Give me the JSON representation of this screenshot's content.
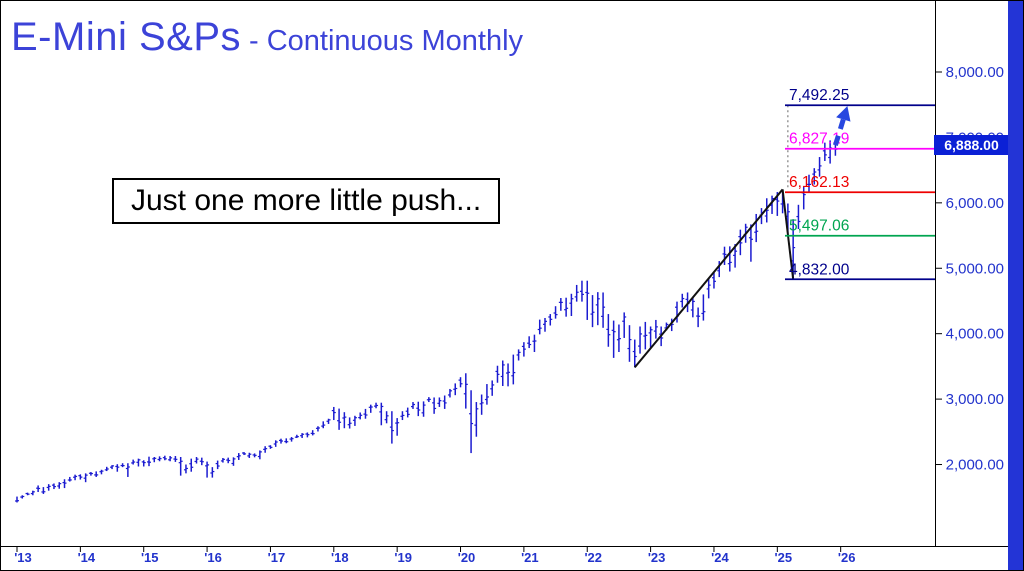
{
  "title": {
    "main": "E-Mini S&Ps",
    "subtitle": "- Continuous Monthly"
  },
  "annotation": {
    "text": "Just one more little push..."
  },
  "current_price": {
    "label": "6,888.00",
    "value": 6888
  },
  "price_scale": {
    "ticks": [
      {
        "label": "8,000.00",
        "value": 8000
      },
      {
        "label": "7,000.00",
        "value": 7000
      },
      {
        "label": "6,000.00",
        "value": 6000
      },
      {
        "label": "5,000.00",
        "value": 5000
      },
      {
        "label": "4,000.00",
        "value": 4000
      },
      {
        "label": "3,000.00",
        "value": 3000
      },
      {
        "label": "2,000.00",
        "value": 2000
      }
    ]
  },
  "x_axis": {
    "year_labels": [
      "'13",
      "'14",
      "'15",
      "'16",
      "'17",
      "'18",
      "'19",
      "'20",
      "'21",
      "'22",
      "'23",
      "'24",
      "'25",
      "'26"
    ]
  },
  "levels": [
    {
      "label": "7,492.25",
      "value": 7492.25,
      "color": "#00008b"
    },
    {
      "label": "6,827.19",
      "value": 6827.19,
      "color": "#ff00ff"
    },
    {
      "label": "6,162.13",
      "value": 6162.13,
      "color": "#ee0000"
    },
    {
      "label": "5,497.06",
      "value": 5497.06,
      "color": "#00a550"
    },
    {
      "label": "4,832.00",
      "value": 4832.0,
      "color": "#00008b"
    }
  ],
  "trend_lines": [
    {
      "points": [
        [
          "2022-10",
          3485
        ],
        [
          "2025-02",
          6205
        ]
      ]
    },
    {
      "points": [
        [
          "2025-02",
          6205
        ],
        [
          "2025-04",
          4832
        ]
      ]
    }
  ],
  "dotted_line": {
    "month": "2025-03",
    "from": 7492.25,
    "to": 6205
  },
  "arrow": {
    "month": "2025-12",
    "from_value": 6880,
    "to_value": 7480
  },
  "colors": {
    "bars": "#1b1bd0",
    "axis_text": "#2233cc",
    "title": "#3c43d8",
    "trend": "#111111",
    "arrow": "#2747e0",
    "dotted": "#666666",
    "price_tag_bg": "#0b20d6",
    "strip": "#2334d6"
  },
  "chart_data": {
    "type": "bar",
    "subtype": "ohlc-monthly-bars",
    "title": "E-Mini S&Ps - Continuous Monthly",
    "xlabel": "",
    "ylabel": "",
    "ylim": [
      800,
      9080
    ],
    "x_start": "2013-01",
    "current_close": 6888,
    "years": [
      {
        "year": 2013,
        "hl": [
          [
            1510,
            1420
          ],
          [
            1530,
            1480
          ],
          [
            1570,
            1530
          ],
          [
            1600,
            1530
          ],
          [
            1680,
            1580
          ],
          [
            1655,
            1550
          ],
          [
            1700,
            1600
          ],
          [
            1710,
            1625
          ],
          [
            1730,
            1630
          ],
          [
            1775,
            1640
          ],
          [
            1810,
            1740
          ],
          [
            1845,
            1760
          ]
        ]
      },
      {
        "year": 2014,
        "hl": [
          [
            1850,
            1770
          ],
          [
            1865,
            1730
          ],
          [
            1885,
            1830
          ],
          [
            1895,
            1810
          ],
          [
            1920,
            1850
          ],
          [
            1965,
            1900
          ],
          [
            1990,
            1930
          ],
          [
            2005,
            1890
          ],
          [
            2020,
            1960
          ],
          [
            2020,
            1810
          ],
          [
            2075,
            2000
          ],
          [
            2090,
            1970
          ]
        ]
      },
      {
        "year": 2015,
        "hl": [
          [
            2065,
            1970
          ],
          [
            2120,
            1975
          ],
          [
            2115,
            2035
          ],
          [
            2125,
            2050
          ],
          [
            2135,
            2065
          ],
          [
            2130,
            2050
          ],
          [
            2130,
            2040
          ],
          [
            2115,
            1830
          ],
          [
            2000,
            1865
          ],
          [
            2090,
            1890
          ],
          [
            2115,
            2015
          ],
          [
            2105,
            1990
          ]
        ]
      },
      {
        "year": 2016,
        "hl": [
          [
            2045,
            1800
          ],
          [
            1960,
            1800
          ],
          [
            2060,
            1930
          ],
          [
            2100,
            2030
          ],
          [
            2105,
            2020
          ],
          [
            2110,
            1980
          ],
          [
            2175,
            2070
          ],
          [
            2190,
            2145
          ],
          [
            2180,
            2100
          ],
          [
            2170,
            2110
          ],
          [
            2215,
            2080
          ],
          [
            2280,
            2180
          ]
        ]
      },
      {
        "year": 2017,
        "hl": [
          [
            2295,
            2240
          ],
          [
            2370,
            2270
          ],
          [
            2395,
            2320
          ],
          [
            2400,
            2325
          ],
          [
            2420,
            2350
          ],
          [
            2455,
            2405
          ],
          [
            2480,
            2405
          ],
          [
            2490,
            2415
          ],
          [
            2525,
            2445
          ],
          [
            2585,
            2505
          ],
          [
            2660,
            2555
          ],
          [
            2700,
            2620
          ]
        ]
      },
      {
        "year": 2018,
        "hl": [
          [
            2880,
            2680
          ],
          [
            2855,
            2530
          ],
          [
            2800,
            2555
          ],
          [
            2720,
            2550
          ],
          [
            2745,
            2590
          ],
          [
            2795,
            2690
          ],
          [
            2850,
            2700
          ],
          [
            2915,
            2790
          ],
          [
            2945,
            2860
          ],
          [
            2945,
            2600
          ],
          [
            2815,
            2630
          ],
          [
            2815,
            2320
          ]
        ]
      },
      {
        "year": 2019,
        "hl": [
          [
            2710,
            2440
          ],
          [
            2815,
            2680
          ],
          [
            2870,
            2720
          ],
          [
            2955,
            2850
          ],
          [
            2960,
            2740
          ],
          [
            2965,
            2730
          ],
          [
            3030,
            2955
          ],
          [
            3025,
            2775
          ],
          [
            3025,
            2880
          ],
          [
            3055,
            2850
          ],
          [
            3155,
            3025
          ],
          [
            3240,
            3060
          ]
        ]
      },
      {
        "year": 2020,
        "hl": [
          [
            3335,
            3180
          ],
          [
            3395,
            2855
          ],
          [
            3135,
            2175
          ],
          [
            2955,
            2425
          ],
          [
            3070,
            2760
          ],
          [
            3230,
            2915
          ],
          [
            3285,
            3050
          ],
          [
            3510,
            3250
          ],
          [
            3590,
            3200
          ],
          [
            3545,
            3195
          ],
          [
            3680,
            3225
          ],
          [
            3760,
            3590
          ]
        ]
      },
      {
        "year": 2021,
        "hl": [
          [
            3870,
            3650
          ],
          [
            3960,
            3780
          ],
          [
            3985,
            3720
          ],
          [
            4215,
            3990
          ],
          [
            4240,
            4030
          ],
          [
            4300,
            4125
          ],
          [
            4420,
            4230
          ],
          [
            4545,
            4350
          ],
          [
            4550,
            4260
          ],
          [
            4610,
            4270
          ],
          [
            4745,
            4490
          ],
          [
            4810,
            4490
          ]
        ]
      },
      {
        "year": 2022,
        "hl": [
          [
            4810,
            4210
          ],
          [
            4590,
            4100
          ],
          [
            4635,
            4130
          ],
          [
            4630,
            4090
          ],
          [
            4300,
            3800
          ],
          [
            4200,
            3630
          ],
          [
            4140,
            3720
          ],
          [
            4325,
            3935
          ],
          [
            4130,
            3570
          ],
          [
            3910,
            3485
          ],
          [
            4110,
            3695
          ],
          [
            4180,
            3760
          ]
        ]
      },
      {
        "year": 2023,
        "hl": [
          [
            4110,
            3790
          ],
          [
            4210,
            3925
          ],
          [
            4110,
            3810
          ],
          [
            4170,
            4050
          ],
          [
            4230,
            4040
          ],
          [
            4490,
            4170
          ],
          [
            4610,
            4400
          ],
          [
            4630,
            4330
          ],
          [
            4565,
            4250
          ],
          [
            4400,
            4100
          ],
          [
            4600,
            4200
          ],
          [
            4840,
            4540
          ]
        ]
      },
      {
        "year": 2024,
        "hl": [
          [
            4930,
            4690
          ],
          [
            5110,
            4865
          ],
          [
            5330,
            5050
          ],
          [
            5335,
            4950
          ],
          [
            5370,
            5010
          ],
          [
            5590,
            5200
          ],
          [
            5680,
            5390
          ],
          [
            5670,
            5100
          ],
          [
            5830,
            5400
          ],
          [
            5920,
            5675
          ],
          [
            6070,
            5700
          ],
          [
            6110,
            5830
          ]
        ]
      },
      {
        "year": 2025,
        "hl": [
          [
            6165,
            5800
          ],
          [
            6205,
            5840
          ],
          [
            5990,
            5500
          ],
          [
            5750,
            4832
          ],
          [
            5970,
            5600
          ],
          [
            6250,
            5900
          ],
          [
            6430,
            6170
          ],
          [
            6530,
            6280
          ],
          [
            6700,
            6400
          ],
          [
            6920,
            6640
          ],
          [
            6955,
            6600
          ],
          [
            6940,
            6720
          ]
        ]
      }
    ]
  }
}
